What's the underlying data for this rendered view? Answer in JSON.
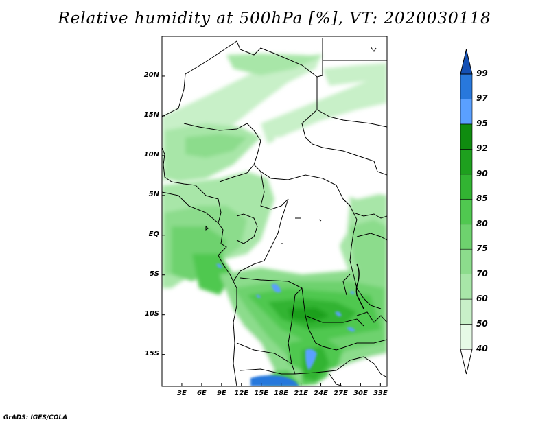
{
  "title": "Relative humidity at 500hPa [%], VT: 2020030118",
  "footer": "GrADS: IGES/COLA",
  "map": {
    "lat_range": [
      -19,
      25
    ],
    "lon_range": [
      0,
      34
    ],
    "lat_ticks": [
      "20N",
      "15N",
      "10N",
      "5N",
      "EQ",
      "5S",
      "10S",
      "15S"
    ],
    "lat_values": [
      20,
      15,
      10,
      5,
      0,
      -5,
      -10,
      -15
    ],
    "lon_ticks": [
      "3E",
      "6E",
      "9E",
      "12E",
      "15E",
      "18E",
      "21E",
      "24E",
      "27E",
      "30E",
      "33E"
    ],
    "lon_values": [
      3,
      6,
      9,
      12,
      15,
      18,
      21,
      24,
      27,
      30,
      33
    ]
  },
  "colorbar": {
    "labels": [
      "40",
      "50",
      "60",
      "70",
      "75",
      "80",
      "85",
      "90",
      "92",
      "95",
      "97",
      "99"
    ],
    "colors": [
      "#ffffff",
      "#e6fae6",
      "#c8f0c8",
      "#a8e6a8",
      "#8cdc8c",
      "#6ed26e",
      "#50c850",
      "#32b432",
      "#1ea01e",
      "#0f8c0f",
      "#5aa0ff",
      "#2878dc",
      "#1450b4"
    ]
  },
  "colors": {
    "coast": "#000000",
    "background": "#ffffff"
  }
}
